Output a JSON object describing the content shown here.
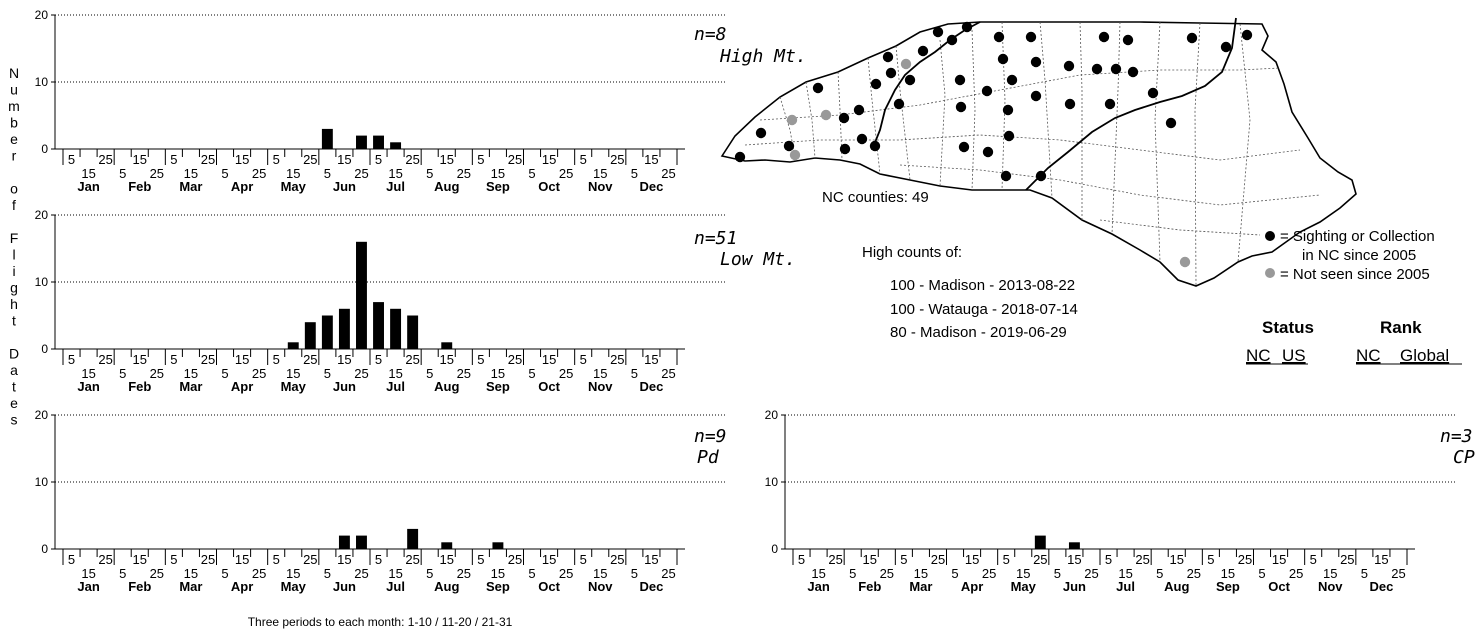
{
  "y_axis_label": "Number of Flight Dates",
  "months": [
    "Jan",
    "Feb",
    "Mar",
    "Apr",
    "May",
    "Jun",
    "Jul",
    "Aug",
    "Sep",
    "Oct",
    "Nov",
    "Dec"
  ],
  "period_labels_top": [
    "5",
    "25",
    "15",
    "5",
    "25",
    "15",
    "5",
    "25",
    "15",
    "5",
    "25",
    "15",
    "5",
    "25",
    "15",
    "5",
    "25",
    "15"
  ],
  "period_labels_bottom": [
    "15",
    "5",
    "25",
    "15",
    "5",
    "25",
    "15",
    "5",
    "25",
    "15",
    "5",
    "25",
    "15",
    "5",
    "25",
    "15",
    "5",
    "25"
  ],
  "footnote": "Three periods to each month: 1-10 / 11-20 / 21-31",
  "chart_data": [
    {
      "type": "bar",
      "panel": "High Mt.",
      "n_label": "n=8",
      "region_label": "High Mt.",
      "ylim": [
        0,
        20
      ],
      "yticks": [
        0,
        10,
        20
      ],
      "x": "36 ten-day periods, Jan 1-10 through Dec 21-31",
      "values": [
        0,
        0,
        0,
        0,
        0,
        0,
        0,
        0,
        0,
        0,
        0,
        0,
        0,
        0,
        0,
        3,
        0,
        2,
        2,
        1,
        0,
        0,
        0,
        0,
        0,
        0,
        0,
        0,
        0,
        0,
        0,
        0,
        0,
        0,
        0,
        0
      ]
    },
    {
      "type": "bar",
      "panel": "Low Mt.",
      "n_label": "n=51",
      "region_label": "Low Mt.",
      "ylim": [
        0,
        20
      ],
      "yticks": [
        0,
        10,
        20
      ],
      "values": [
        0,
        0,
        0,
        0,
        0,
        0,
        0,
        0,
        0,
        0,
        0,
        0,
        0,
        1,
        4,
        5,
        6,
        16,
        7,
        6,
        5,
        0,
        1,
        0,
        0,
        0,
        0,
        0,
        0,
        0,
        0,
        0,
        0,
        0,
        0,
        0
      ]
    },
    {
      "type": "bar",
      "panel": "Pd",
      "n_label": "n=9",
      "region_label": "Pd",
      "ylim": [
        0,
        20
      ],
      "yticks": [
        0,
        10,
        20
      ],
      "values": [
        0,
        0,
        0,
        0,
        0,
        0,
        0,
        0,
        0,
        0,
        0,
        0,
        0,
        0,
        0,
        0,
        2,
        2,
        0,
        0,
        3,
        0,
        1,
        0,
        0,
        1,
        0,
        0,
        0,
        0,
        0,
        0,
        0,
        0,
        0,
        0
      ]
    },
    {
      "type": "bar",
      "panel": "CP",
      "n_label": "n=3",
      "region_label": "CP",
      "ylim": [
        0,
        20
      ],
      "yticks": [
        0,
        10,
        20
      ],
      "values": [
        0,
        0,
        0,
        0,
        0,
        0,
        0,
        0,
        0,
        0,
        0,
        0,
        0,
        0,
        2,
        0,
        1,
        0,
        0,
        0,
        0,
        0,
        0,
        0,
        0,
        0,
        0,
        0,
        0,
        0,
        0,
        0,
        0,
        0,
        0,
        0
      ]
    }
  ],
  "map": {
    "counties_label": "NC counties: 49",
    "legend_black": "= Sighting or Collection",
    "legend_black_2": "in NC since 2005",
    "legend_gray": "= Not seen since 2005",
    "color_recent": "#000000",
    "color_old": "#999999"
  },
  "high_counts": {
    "heading": "High counts of:",
    "items": [
      "100 - Madison - 2013-08-22",
      "100 - Watauga - 2018-07-14",
      "80 - Madison - 2019-06-29"
    ]
  },
  "status": {
    "status_heading": "Status",
    "rank_heading": "Rank",
    "nc": "NC",
    "us": "US",
    "rank_nc": "NC",
    "global": "Global"
  }
}
